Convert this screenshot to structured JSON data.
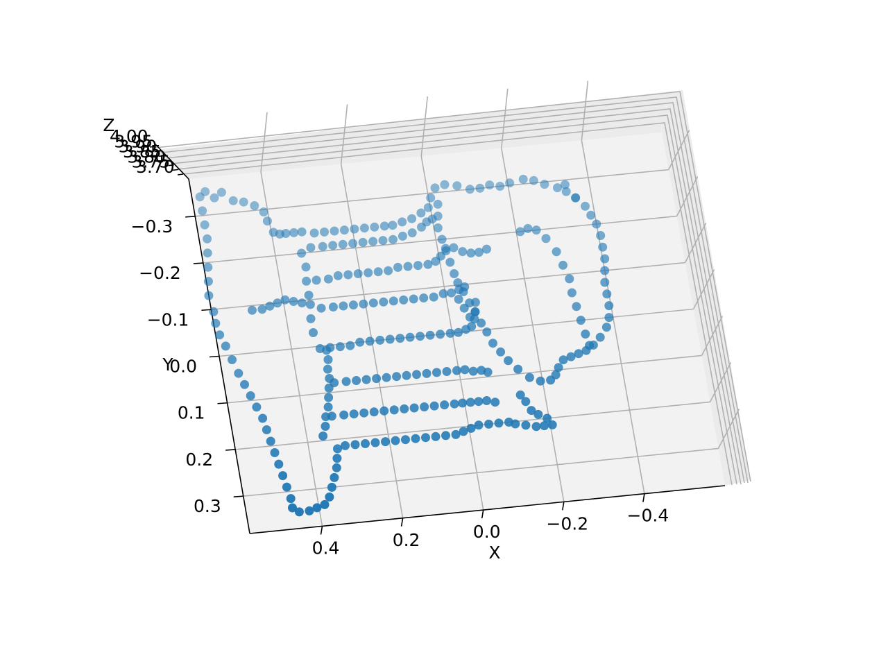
{
  "chart_data": {
    "type": "scatter",
    "projection": "3d",
    "title": "",
    "xlabel": "X",
    "ylabel": "Y",
    "zlabel": "Z",
    "xticks": [
      "0.4",
      "0.2",
      "0.0",
      "−0.2",
      "−0.4"
    ],
    "yticks": [
      "−0.3",
      "−0.2",
      "−0.1",
      "0.0",
      "0.1",
      "0.2",
      "0.3"
    ],
    "zticks": [
      "4.00",
      "3.95",
      "3.90",
      "3.85",
      "3.80",
      "3.75",
      "3.70"
    ],
    "xlim": [
      0.58,
      -0.6
    ],
    "ylim": [
      -0.38,
      0.38
    ],
    "zlim": [
      3.68,
      4.02
    ],
    "grid": true,
    "legend": "none",
    "colors": {
      "marker": "#1f77b4",
      "pane": "#f2f2f2",
      "grid": "#b0b0b0"
    },
    "series": [
      {
        "marker": "circle",
        "points": [
          [
            0.56,
            -0.34
          ],
          [
            0.545,
            -0.35
          ],
          [
            0.525,
            -0.335
          ],
          [
            0.505,
            -0.345
          ],
          [
            0.48,
            -0.325
          ],
          [
            0.455,
            -0.32
          ],
          [
            0.43,
            -0.31
          ],
          [
            0.41,
            -0.295
          ],
          [
            0.405,
            -0.275
          ],
          [
            0.395,
            -0.25
          ],
          [
            0.38,
            -0.245
          ],
          [
            0.365,
            -0.245
          ],
          [
            0.345,
            -0.245
          ],
          [
            0.325,
            -0.245
          ],
          [
            0.295,
            -0.24
          ],
          [
            0.27,
            -0.24
          ],
          [
            0.245,
            -0.24
          ],
          [
            0.22,
            -0.24
          ],
          [
            0.195,
            -0.24
          ],
          [
            0.17,
            -0.24
          ],
          [
            0.145,
            -0.24
          ],
          [
            0.12,
            -0.24
          ],
          [
            0.1,
            -0.24
          ],
          [
            0.075,
            -0.245
          ],
          [
            0.05,
            -0.25
          ],
          [
            0.025,
            -0.26
          ],
          [
            0.005,
            -0.27
          ],
          [
            -0.005,
            -0.29
          ],
          [
            -0.02,
            -0.31
          ],
          [
            -0.045,
            -0.315
          ],
          [
            -0.075,
            -0.31
          ],
          [
            -0.105,
            -0.3
          ],
          [
            -0.13,
            -0.3
          ],
          [
            -0.155,
            -0.305
          ],
          [
            -0.18,
            -0.3
          ],
          [
            -0.205,
            -0.305
          ],
          [
            -0.24,
            -0.31
          ],
          [
            -0.265,
            -0.305
          ],
          [
            -0.29,
            -0.295
          ],
          [
            -0.32,
            -0.285
          ],
          [
            -0.34,
            -0.275
          ],
          [
            -0.36,
            -0.26
          ],
          [
            -0.38,
            -0.24
          ],
          [
            -0.39,
            -0.22
          ],
          [
            -0.4,
            -0.2
          ],
          [
            -0.405,
            -0.175
          ],
          [
            -0.405,
            -0.15
          ],
          [
            -0.405,
            -0.125
          ],
          [
            -0.4,
            -0.1
          ],
          [
            -0.395,
            -0.075
          ],
          [
            -0.395,
            -0.05
          ],
          [
            -0.395,
            -0.025
          ],
          [
            -0.39,
            0.0
          ],
          [
            -0.38,
            0.02
          ],
          [
            -0.36,
            0.04
          ],
          [
            -0.34,
            0.055
          ],
          [
            -0.32,
            0.065
          ],
          [
            -0.3,
            0.07
          ],
          [
            -0.28,
            0.075
          ],
          [
            -0.26,
            0.08
          ],
          [
            -0.245,
            0.095
          ],
          [
            -0.235,
            0.11
          ],
          [
            -0.22,
            0.12
          ],
          [
            -0.195,
            0.12
          ],
          [
            -0.17,
            0.11
          ],
          [
            -0.145,
            0.09
          ],
          [
            -0.125,
            0.07
          ],
          [
            -0.11,
            0.05
          ],
          [
            -0.095,
            0.03
          ],
          [
            -0.085,
            0.005
          ],
          [
            -0.075,
            -0.015
          ],
          [
            -0.065,
            -0.04
          ],
          [
            -0.055,
            -0.06
          ],
          [
            -0.045,
            -0.085
          ],
          [
            -0.035,
            -0.105
          ],
          [
            -0.03,
            -0.125
          ],
          [
            -0.025,
            -0.15
          ],
          [
            -0.02,
            -0.175
          ],
          [
            -0.015,
            -0.2
          ],
          [
            -0.01,
            -0.225
          ],
          [
            -0.015,
            -0.25
          ],
          [
            -0.02,
            -0.275
          ],
          [
            -0.04,
            -0.18
          ],
          [
            -0.06,
            -0.17
          ],
          [
            -0.08,
            -0.165
          ],
          [
            -0.1,
            -0.165
          ],
          [
            -0.12,
            -0.17
          ],
          [
            0.56,
            -0.31
          ],
          [
            0.56,
            -0.28
          ],
          [
            0.56,
            -0.25
          ],
          [
            0.565,
            -0.22
          ],
          [
            0.57,
            -0.19
          ],
          [
            0.575,
            -0.16
          ],
          [
            0.58,
            -0.13
          ],
          [
            0.575,
            -0.095
          ],
          [
            0.575,
            -0.07
          ],
          [
            0.57,
            -0.045
          ],
          [
            0.56,
            -0.02
          ],
          [
            0.55,
            0.01
          ],
          [
            0.54,
            0.04
          ],
          [
            0.53,
            0.065
          ],
          [
            0.52,
            0.09
          ],
          [
            0.51,
            0.115
          ],
          [
            0.5,
            0.14
          ],
          [
            0.495,
            0.165
          ],
          [
            0.49,
            0.19
          ],
          [
            0.485,
            0.215
          ],
          [
            0.48,
            0.24
          ],
          [
            0.475,
            0.265
          ],
          [
            0.47,
            0.29
          ],
          [
            0.465,
            0.315
          ],
          [
            0.465,
            0.335
          ],
          [
            0.45,
            0.345
          ],
          [
            0.425,
            0.345
          ],
          [
            0.405,
            0.34
          ],
          [
            0.385,
            0.335
          ],
          [
            0.37,
            0.32
          ],
          [
            0.36,
            0.3
          ],
          [
            0.35,
            0.28
          ],
          [
            0.34,
            0.26
          ],
          [
            0.335,
            0.24
          ],
          [
            0.33,
            0.22
          ],
          [
            0.31,
            0.215
          ],
          [
            0.285,
            0.215
          ],
          [
            0.26,
            0.215
          ],
          [
            0.235,
            0.215
          ],
          [
            0.21,
            0.215
          ],
          [
            0.185,
            0.215
          ],
          [
            0.16,
            0.215
          ],
          [
            0.135,
            0.215
          ],
          [
            0.11,
            0.215
          ],
          [
            0.085,
            0.215
          ],
          [
            0.06,
            0.215
          ],
          [
            0.035,
            0.215
          ],
          [
            0.015,
            0.21
          ],
          [
            -0.005,
            0.205
          ],
          [
            -0.025,
            0.2
          ],
          [
            -0.05,
            0.2
          ],
          [
            -0.075,
            0.2
          ],
          [
            -0.1,
            0.2
          ],
          [
            -0.115,
            0.205
          ],
          [
            -0.14,
            0.21
          ],
          [
            -0.165,
            0.215
          ],
          [
            -0.185,
            0.215
          ],
          [
            -0.205,
            0.215
          ],
          [
            -0.195,
            0.2
          ],
          [
            -0.175,
            0.19
          ],
          [
            -0.16,
            0.18
          ],
          [
            -0.15,
            0.16
          ],
          [
            -0.14,
            0.145
          ],
          [
            0.36,
            0.19
          ],
          [
            0.35,
            0.17
          ],
          [
            0.345,
            0.15
          ],
          [
            0.335,
            0.13
          ],
          [
            0.33,
            0.11
          ],
          [
            0.325,
            0.09
          ],
          [
            0.32,
            0.07
          ],
          [
            0.32,
            0.05
          ],
          [
            0.315,
            0.03
          ],
          [
            0.315,
            0.01
          ],
          [
            0.33,
            0.15
          ],
          [
            0.3,
            0.15
          ],
          [
            0.275,
            0.15
          ],
          [
            0.25,
            0.15
          ],
          [
            0.225,
            0.15
          ],
          [
            0.2,
            0.15
          ],
          [
            0.175,
            0.15
          ],
          [
            0.15,
            0.15
          ],
          [
            0.125,
            0.15
          ],
          [
            0.1,
            0.15
          ],
          [
            0.075,
            0.15
          ],
          [
            0.05,
            0.15
          ],
          [
            0.025,
            0.15
          ],
          [
            0.005,
            0.15
          ],
          [
            -0.015,
            0.15
          ],
          [
            -0.035,
            0.15
          ],
          [
            -0.055,
            0.15
          ],
          [
            -0.075,
            0.155
          ],
          [
            0.31,
            0.08
          ],
          [
            0.28,
            0.08
          ],
          [
            0.255,
            0.08
          ],
          [
            0.23,
            0.08
          ],
          [
            0.205,
            0.08
          ],
          [
            0.18,
            0.08
          ],
          [
            0.155,
            0.08
          ],
          [
            0.13,
            0.08
          ],
          [
            0.105,
            0.08
          ],
          [
            0.08,
            0.08
          ],
          [
            0.055,
            0.08
          ],
          [
            0.03,
            0.08
          ],
          [
            0.005,
            0.08
          ],
          [
            -0.015,
            0.08
          ],
          [
            -0.035,
            0.085
          ],
          [
            -0.055,
            0.085
          ],
          [
            -0.07,
            0.09
          ],
          [
            0.33,
            0.005
          ],
          [
            0.305,
            0.005
          ],
          [
            0.28,
            0.005
          ],
          [
            0.255,
            0.005
          ],
          [
            0.23,
            0.0
          ],
          [
            0.205,
            0.0
          ],
          [
            0.18,
            0.0
          ],
          [
            0.155,
            0.0
          ],
          [
            0.13,
            0.0
          ],
          [
            0.105,
            0.0
          ],
          [
            0.08,
            0.0
          ],
          [
            0.055,
            0.0
          ],
          [
            0.03,
            0.0
          ],
          [
            0.005,
            0.0
          ],
          [
            -0.015,
            0.0
          ],
          [
            -0.035,
            -0.005
          ],
          [
            -0.05,
            -0.01
          ],
          [
            -0.06,
            -0.025
          ],
          [
            -0.065,
            -0.04
          ],
          [
            -0.07,
            -0.06
          ],
          [
            0.34,
            -0.03
          ],
          [
            0.34,
            -0.06
          ],
          [
            0.335,
            -0.09
          ],
          [
            0.31,
            -0.08
          ],
          [
            0.28,
            -0.08
          ],
          [
            0.255,
            -0.08
          ],
          [
            0.23,
            -0.08
          ],
          [
            0.205,
            -0.08
          ],
          [
            0.18,
            -0.08
          ],
          [
            0.155,
            -0.08
          ],
          [
            0.13,
            -0.08
          ],
          [
            0.105,
            -0.08
          ],
          [
            0.08,
            -0.08
          ],
          [
            0.055,
            -0.08
          ],
          [
            0.03,
            -0.08
          ],
          [
            0.005,
            -0.085
          ],
          [
            -0.015,
            -0.085
          ],
          [
            -0.035,
            -0.09
          ],
          [
            -0.05,
            -0.095
          ],
          [
            0.335,
            -0.11
          ],
          [
            0.335,
            -0.14
          ],
          [
            0.31,
            -0.14
          ],
          [
            0.28,
            -0.14
          ],
          [
            0.255,
            -0.145
          ],
          [
            0.23,
            -0.145
          ],
          [
            0.205,
            -0.145
          ],
          [
            0.18,
            -0.145
          ],
          [
            0.155,
            -0.145
          ],
          [
            0.13,
            -0.145
          ],
          [
            0.105,
            -0.15
          ],
          [
            0.08,
            -0.15
          ],
          [
            0.055,
            -0.15
          ],
          [
            0.03,
            -0.15
          ],
          [
            0.01,
            -0.155
          ],
          [
            -0.005,
            -0.165
          ],
          [
            -0.02,
            -0.18
          ],
          [
            0.33,
            -0.17
          ],
          [
            0.335,
            -0.2
          ],
          [
            0.31,
            -0.21
          ],
          [
            0.28,
            -0.21
          ],
          [
            0.255,
            -0.21
          ],
          [
            0.23,
            -0.21
          ],
          [
            0.205,
            -0.21
          ],
          [
            0.18,
            -0.21
          ],
          [
            0.155,
            -0.21
          ],
          [
            0.13,
            -0.21
          ],
          [
            0.105,
            -0.21
          ],
          [
            0.08,
            -0.215
          ],
          [
            0.055,
            -0.22
          ],
          [
            0.03,
            -0.23
          ],
          [
            0.015,
            -0.24
          ],
          [
            0.0,
            -0.245
          ],
          [
            0.48,
            -0.09
          ],
          [
            0.455,
            -0.09
          ],
          [
            0.435,
            -0.095
          ],
          [
            0.415,
            -0.1
          ],
          [
            0.395,
            -0.105
          ],
          [
            0.375,
            -0.1
          ],
          [
            0.355,
            -0.095
          ],
          [
            -0.25,
            -0.2
          ],
          [
            -0.23,
            -0.205
          ],
          [
            -0.21,
            -0.2
          ],
          [
            -0.27,
            -0.18
          ],
          [
            -0.29,
            -0.15
          ],
          [
            -0.3,
            -0.12
          ],
          [
            -0.31,
            -0.09
          ],
          [
            -0.31,
            -0.06
          ],
          [
            -0.315,
            -0.03
          ],
          [
            -0.32,
            0.0
          ],
          [
            -0.325,
            0.03
          ],
          [
            -0.33,
            0.055
          ],
          [
            -0.34,
            -0.29
          ],
          [
            -0.36,
            -0.26
          ],
          [
            -0.03,
            -0.07
          ],
          [
            -0.04,
            -0.05
          ],
          [
            -0.05,
            -0.03
          ]
        ]
      }
    ]
  }
}
